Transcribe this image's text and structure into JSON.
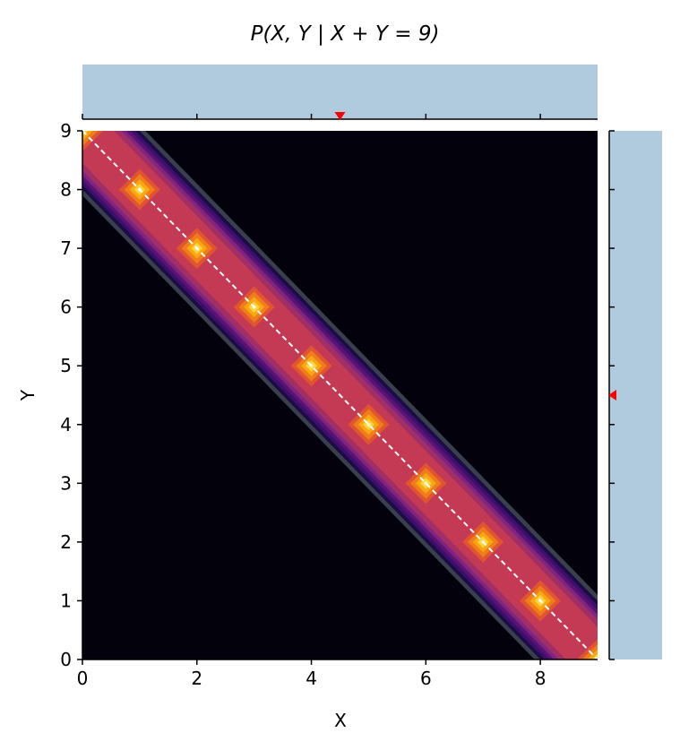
{
  "chart_data": {
    "type": "heatmap",
    "title": "P(X, Y | X + Y = 9)",
    "xlabel": "X",
    "ylabel": "Y",
    "xlim": [
      0,
      9
    ],
    "ylim": [
      0,
      9
    ],
    "xticks": [
      0,
      2,
      4,
      6,
      8
    ],
    "yticks": [
      0,
      1,
      2,
      3,
      4,
      5,
      6,
      7,
      8,
      9
    ],
    "constraint_sum": 9,
    "points": [
      {
        "x": 0,
        "y": 9
      },
      {
        "x": 1,
        "y": 8
      },
      {
        "x": 2,
        "y": 7
      },
      {
        "x": 3,
        "y": 6
      },
      {
        "x": 4,
        "y": 5
      },
      {
        "x": 5,
        "y": 4
      },
      {
        "x": 6,
        "y": 3
      },
      {
        "x": 7,
        "y": 2
      },
      {
        "x": 8,
        "y": 1
      },
      {
        "x": 9,
        "y": 0
      }
    ],
    "constraint_line": {
      "from": [
        0,
        9
      ],
      "to": [
        9,
        0
      ],
      "style": "white dashed"
    },
    "colormap": "inferno",
    "marginal_x": {
      "type": "bar",
      "uniform": true,
      "marker_x": 4.5
    },
    "marginal_y": {
      "type": "bar",
      "uniform": true,
      "marker_y": 4.5
    },
    "colors": {
      "marginal_fill": "#b0cbde",
      "marker": "#ff0000",
      "background": "#03020c",
      "band": "#c43a55"
    }
  }
}
